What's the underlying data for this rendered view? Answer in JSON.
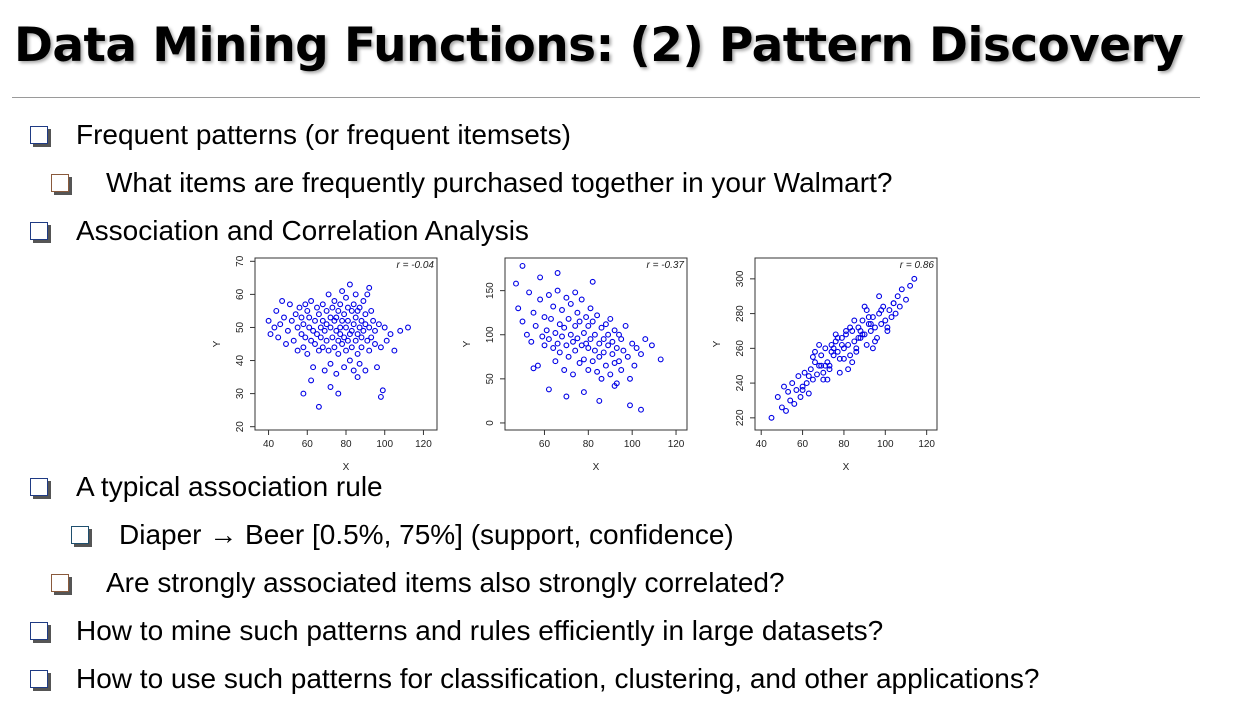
{
  "slide": {
    "title": "Data Mining Functions: (2) Pattern Discovery"
  },
  "bullets": [
    {
      "id": "b1",
      "level": 1,
      "text": "Frequent patterns (or frequent itemsets)"
    },
    {
      "id": "b2",
      "level": 2,
      "text": "What items are frequently purchased together in your Walmart?"
    },
    {
      "id": "b3",
      "level": 1,
      "text": "Association and Correlation Analysis"
    },
    {
      "id": "b4",
      "level": 1,
      "text": "A typical association rule"
    },
    {
      "id": "b5",
      "level": 3,
      "text": "Diaper → Beer [0.5%, 75%]  (support, confidence)"
    },
    {
      "id": "b6",
      "level": 2,
      "text": "Are strongly associated items also strongly correlated?"
    },
    {
      "id": "b7",
      "level": 1,
      "text": "How to mine such patterns and rules efficiently in large datasets?"
    },
    {
      "id": "b8",
      "level": 1,
      "text": "How to use such patterns for classification, clustering, and other applications?"
    }
  ],
  "colors": {
    "marker": "#0000e6",
    "bullet_level1": "#1f3b84",
    "bullet_level2": "#8a5a3c"
  },
  "chart_data": [
    {
      "type": "scatter",
      "annotation": "r = -0.04",
      "xlabel": "X",
      "ylabel": "Y",
      "xlim": [
        33,
        127
      ],
      "ylim": [
        19,
        71
      ],
      "xticks": [
        40,
        60,
        80,
        100,
        120
      ],
      "yticks": [
        20,
        30,
        40,
        50,
        60,
        70
      ],
      "series": [
        {
          "x": [
            40,
            41,
            43,
            44,
            45,
            46,
            47,
            48,
            49,
            50,
            51,
            52,
            53,
            54,
            55,
            55,
            56,
            57,
            57,
            58,
            58,
            59,
            59,
            60,
            60,
            61,
            61,
            62,
            62,
            63,
            63,
            64,
            64,
            65,
            65,
            66,
            66,
            67,
            67,
            68,
            68,
            68,
            69,
            69,
            70,
            70,
            70,
            71,
            71,
            72,
            72,
            72,
            73,
            73,
            74,
            74,
            74,
            75,
            75,
            75,
            76,
            76,
            76,
            77,
            77,
            77,
            78,
            78,
            78,
            79,
            79,
            79,
            80,
            80,
            80,
            81,
            81,
            81,
            82,
            82,
            82,
            83,
            83,
            83,
            84,
            84,
            84,
            85,
            85,
            85,
            86,
            86,
            86,
            87,
            87,
            87,
            88,
            88,
            88,
            89,
            89,
            90,
            90,
            90,
            91,
            91,
            92,
            92,
            93,
            93,
            94,
            95,
            95,
            96,
            97,
            98,
            99,
            100,
            101,
            103,
            105,
            108,
            112,
            58,
            62,
            66,
            72,
            76,
            86,
            92,
            98
          ],
          "y": [
            52,
            48,
            50,
            55,
            47,
            51,
            58,
            53,
            45,
            49,
            57,
            52,
            46,
            54,
            43,
            50,
            56,
            48,
            53,
            44,
            51,
            57,
            47,
            55,
            42,
            50,
            53,
            46,
            58,
            49,
            38,
            52,
            45,
            56,
            48,
            54,
            43,
            50,
            47,
            57,
            44,
            52,
            49,
            37,
            55,
            46,
            51,
            60,
            43,
            50,
            53,
            39,
            56,
            47,
            52,
            44,
            58,
            49,
            36,
            53,
            46,
            55,
            42,
            50,
            57,
            48,
            45,
            61,
            52,
            38,
            54,
            47,
            50,
            59,
            43,
            56,
            46,
            52,
            48,
            63,
            40,
            55,
            49,
            44,
            57,
            51,
            37,
            53,
            46,
            60,
            48,
            42,
            55,
            50,
            39,
            56,
            47,
            52,
            44,
            58,
            49,
            51,
            37,
            54,
            46,
            60,
            43,
            50,
            55,
            47,
            52,
            45,
            49,
            38,
            51,
            44,
            31,
            50,
            46,
            48,
            43,
            49,
            50,
            30,
            34,
            26,
            32,
            30,
            35,
            62,
            29
          ]
        }
      ]
    },
    {
      "type": "scatter",
      "annotation": "r = -0.37",
      "xlabel": "X",
      "ylabel": "Y",
      "xlim": [
        42,
        125
      ],
      "ylim": [
        -8,
        187
      ],
      "xticks": [
        60,
        80,
        100,
        120
      ],
      "yticks": [
        0,
        50,
        100,
        150
      ],
      "series": [
        {
          "x": [
            47,
            48,
            50,
            52,
            53,
            54,
            55,
            56,
            57,
            58,
            59,
            60,
            60,
            61,
            62,
            62,
            63,
            64,
            64,
            65,
            65,
            66,
            66,
            67,
            67,
            68,
            68,
            69,
            69,
            70,
            70,
            71,
            71,
            72,
            72,
            73,
            73,
            74,
            74,
            75,
            75,
            76,
            76,
            77,
            77,
            78,
            78,
            79,
            79,
            80,
            80,
            80,
            81,
            81,
            82,
            82,
            83,
            83,
            84,
            84,
            85,
            85,
            86,
            86,
            87,
            87,
            88,
            88,
            89,
            89,
            90,
            90,
            91,
            91,
            92,
            92,
            93,
            93,
            94,
            94,
            95,
            95,
            96,
            97,
            98,
            99,
            100,
            101,
            102,
            104,
            106,
            109,
            113,
            55,
            62,
            70,
            78,
            85,
            92,
            99,
            104,
            50,
            58,
            66,
            74,
            82
          ],
          "y": [
            158,
            130,
            115,
            100,
            148,
            92,
            125,
            110,
            65,
            140,
            98,
            120,
            88,
            105,
            145,
            95,
            118,
            85,
            132,
            102,
            70,
            150,
            90,
            112,
            80,
            128,
            98,
            60,
            108,
            142,
            88,
            118,
            75,
            100,
            135,
            92,
            55,
            110,
            82,
            125,
            96,
            68,
            115,
            88,
            140,
            102,
            72,
            120,
            90,
            60,
            110,
            85,
            130,
            95,
            70,
            115,
            82,
            100,
            58,
            122,
            90,
            75,
            108,
            50,
            95,
            80,
            112,
            65,
            100,
            88,
            55,
            118,
            78,
            92,
            68,
            105,
            45,
            85,
            100,
            70,
            95,
            60,
            82,
            110,
            75,
            50,
            90,
            65,
            85,
            78,
            95,
            88,
            72,
            62,
            38,
            30,
            35,
            25,
            42,
            20,
            15,
            178,
            165,
            170,
            148,
            160
          ]
        }
      ]
    },
    {
      "type": "scatter",
      "annotation": "r = 0.86",
      "xlabel": "X",
      "ylabel": "Y",
      "xlim": [
        37,
        125
      ],
      "ylim": [
        213,
        312
      ],
      "xticks": [
        40,
        60,
        80,
        100,
        120
      ],
      "yticks": [
        220,
        240,
        260,
        280,
        300
      ],
      "series": [
        {
          "x": [
            45,
            48,
            50,
            51,
            52,
            53,
            54,
            55,
            56,
            57,
            58,
            59,
            60,
            61,
            62,
            63,
            64,
            65,
            66,
            67,
            68,
            69,
            70,
            71,
            72,
            73,
            74,
            75,
            76,
            77,
            78,
            79,
            80,
            81,
            82,
            83,
            84,
            85,
            86,
            87,
            88,
            89,
            90,
            91,
            92,
            93,
            94,
            95,
            96,
            97,
            98,
            99,
            100,
            101,
            102,
            103,
            104,
            105,
            106,
            107,
            108,
            110,
            112,
            114,
            65,
            68,
            71,
            74,
            77,
            80,
            83,
            86,
            89,
            92,
            95,
            98,
            101,
            104,
            70,
            73,
            76,
            79,
            82,
            85,
            88,
            91,
            94,
            97,
            60,
            63,
            66,
            69,
            72,
            75,
            78,
            81,
            84,
            87,
            90,
            93
          ],
          "y": [
            220,
            232,
            226,
            238,
            224,
            235,
            230,
            240,
            228,
            236,
            244,
            232,
            238,
            246,
            240,
            234,
            248,
            242,
            252,
            245,
            250,
            256,
            246,
            260,
            252,
            248,
            262,
            256,
            264,
            258,
            254,
            266,
            260,
            268,
            262,
            256,
            270,
            264,
            258,
            272,
            266,
            276,
            268,
            262,
            274,
            270,
            278,
            272,
            266,
            280,
            274,
            284,
            276,
            270,
            282,
            278,
            286,
            280,
            290,
            284,
            294,
            288,
            296,
            300,
            255,
            262,
            250,
            258,
            266,
            254,
            272,
            260,
            268,
            278,
            264,
            282,
            272,
            286,
            242,
            250,
            268,
            262,
            248,
            276,
            270,
            282,
            260,
            290,
            236,
            244,
            258,
            250,
            242,
            260,
            246,
            270,
            252,
            266,
            284,
            274
          ]
        }
      ]
    }
  ]
}
